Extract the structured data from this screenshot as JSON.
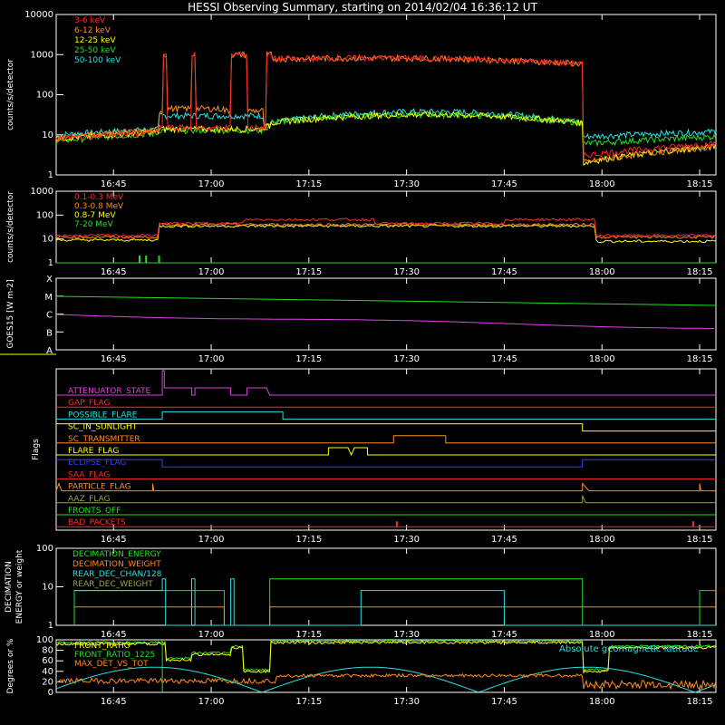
{
  "title": "HESSI Observing Summary, starting on 2014/02/04 16:36:12 UT",
  "colors": {
    "red": "#ff2a2a",
    "orange": "#ff8a1e",
    "yellow": "#ffff00",
    "green": "#20e020",
    "cyan": "#28e0e0",
    "magenta": "#e040e0",
    "blue": "#3a3aff",
    "olive": "#a0a050",
    "white": "#ffffff"
  },
  "time_ticks": [
    "16:45",
    "17:00",
    "17:15",
    "17:30",
    "17:45",
    "18:00",
    "18:15"
  ],
  "chart_data": [
    {
      "type": "line",
      "ylabel": "counts/s/detector",
      "y_scale": "log",
      "ylim": [
        1,
        10000
      ],
      "y_ticks": [
        "1",
        "10",
        "100",
        "1000",
        "10000"
      ],
      "legend": [
        "3-6 keV",
        "6-12 keV",
        "12-25 keV",
        "25-50 keV",
        "50-100 keV"
      ],
      "legend_colors": [
        "#ff2a2a",
        "#ff8a1e",
        "#ffff00",
        "#20e020",
        "#28e0e0"
      ]
    },
    {
      "type": "line",
      "ylabel": "counts/s/detector",
      "y_scale": "log",
      "ylim": [
        1,
        1000
      ],
      "y_ticks": [
        "1",
        "10",
        "100",
        "1000"
      ],
      "legend": [
        "0.1-0.3 MeV",
        "0.3-0.8 MeV",
        "0.8-7 MeV",
        "7-20 MeV"
      ],
      "legend_colors": [
        "#ff2a2a",
        "#ff8a1e",
        "#ffff00",
        "#20e020"
      ]
    },
    {
      "type": "line",
      "ylabel": "GOES15 [W m-2]",
      "y_ticks": [
        "A",
        "B",
        "C",
        "M",
        "X"
      ]
    },
    {
      "type": "line",
      "ylabel": "Flags",
      "legend": [
        "ATTENUATOR_STATE",
        "GAP_FLAG",
        "POSSIBLE_FLARE",
        "SC_IN_SUNLIGHT",
        "SC_TRANSMITTER",
        "FLARE_FLAG",
        "ECLIPSE_FLAG",
        "SAA_FLAG",
        "PARTICLE_FLAG",
        "AAZ_FLAG",
        "FRONTS_OFF",
        "BAD_PACKETS"
      ],
      "legend_colors": [
        "#e040e0",
        "#ff2a2a",
        "#28e0e0",
        "#ffff00",
        "#ff8a1e",
        "#ffff00",
        "#3a3aff",
        "#ff2a2a",
        "#ff8a1e",
        "#a0a050",
        "#20e020",
        "#ff2a2a"
      ]
    },
    {
      "type": "line",
      "ylabel": "DECIMATION ENERGY or weight",
      "y_scale": "log",
      "ylim": [
        1,
        100
      ],
      "y_ticks": [
        "1",
        "10",
        "100"
      ],
      "legend": [
        "DECIMATION_ENERGY",
        "DECIMATION_WEIGHT",
        "REAR_DEC_CHAN/128",
        "REAR_DEC_WEIGHT"
      ],
      "legend_colors": [
        "#20e020",
        "#ff8a1e",
        "#28e0e0",
        "#a0a050"
      ]
    },
    {
      "type": "line",
      "ylabel": "Degrees or %",
      "ylim": [
        0,
        100
      ],
      "y_ticks": [
        "0",
        "20",
        "40",
        "60",
        "80",
        "100"
      ],
      "legend": [
        "FRONT_RATIO",
        "FRONT_RATIO_1225",
        "MAX_DET_VS_TOT"
      ],
      "legend_colors": [
        "#ffff00",
        "#20e020",
        "#ff8a1e"
      ],
      "annotation": "Absolute geomagnetic latitude",
      "annotation_color": "#28e0e0"
    }
  ]
}
